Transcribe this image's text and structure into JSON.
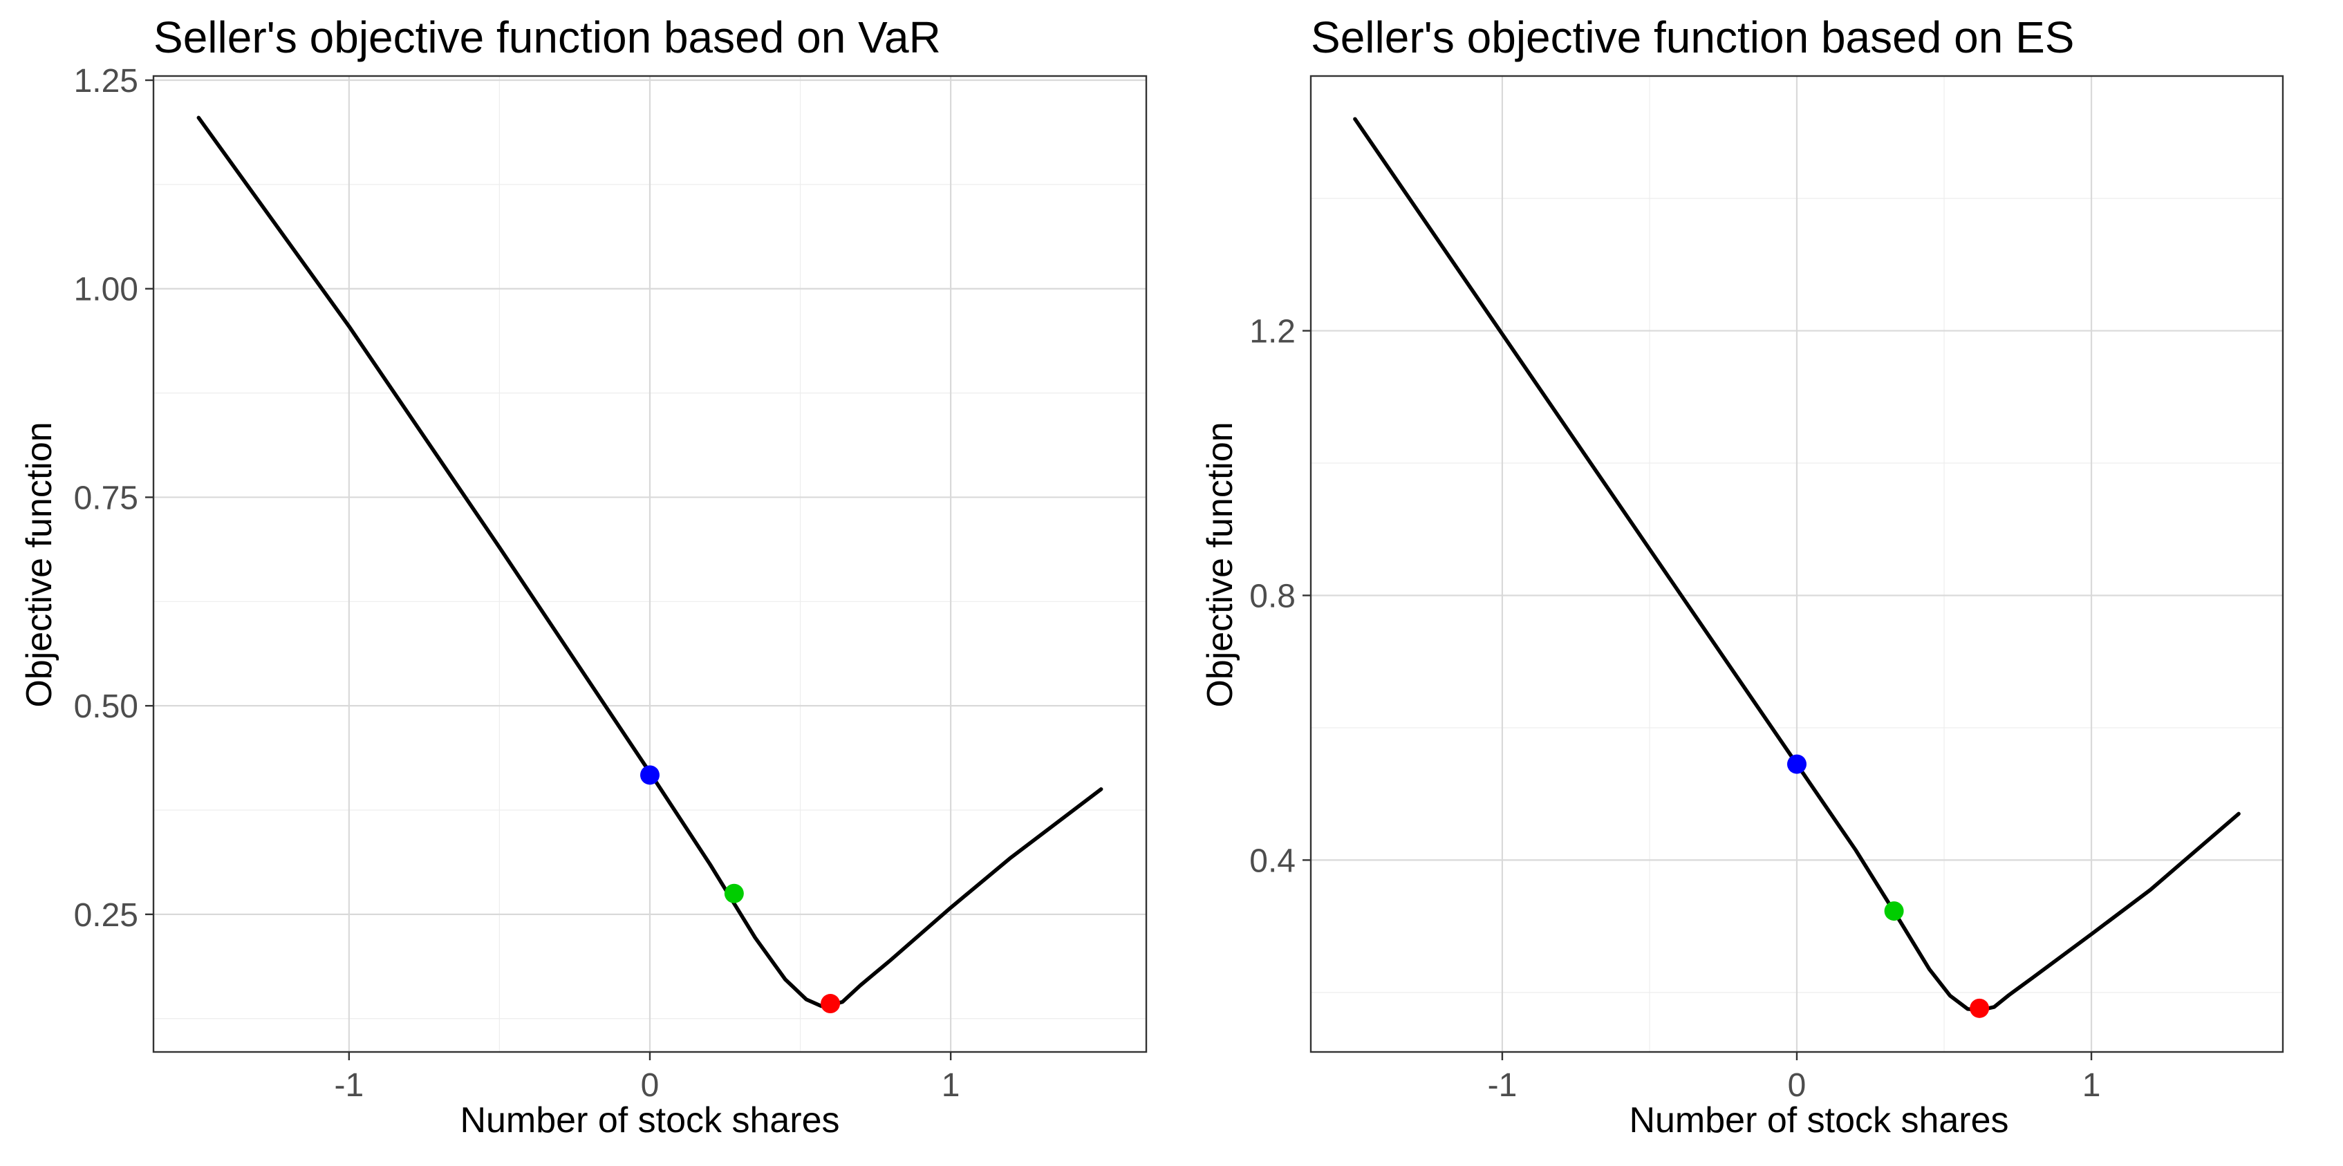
{
  "chart_data": [
    {
      "type": "line",
      "title": "Seller's objective function based on VaR",
      "xlabel": "Number of stock shares",
      "ylabel": "Objective function",
      "xlim": [
        -1.65,
        1.65
      ],
      "ylim": [
        0.085,
        1.255
      ],
      "x_ticks": [
        -1,
        0,
        1
      ],
      "x_tick_labels": [
        "-1",
        "0",
        "1"
      ],
      "y_ticks": [
        0.25,
        0.5,
        0.75,
        1.0,
        1.25
      ],
      "y_tick_labels": [
        "0.25",
        "0.50",
        "0.75",
        "1.00",
        "1.25"
      ],
      "grid": true,
      "series": [
        {
          "color": "#000000",
          "x": [
            -1.5,
            -1.0,
            -0.5,
            0.0,
            0.2,
            0.35,
            0.45,
            0.52,
            0.57,
            0.6,
            0.64,
            0.7,
            0.8,
            1.0,
            1.2,
            1.5
          ],
          "y": [
            1.205,
            0.955,
            0.69,
            0.42,
            0.31,
            0.222,
            0.172,
            0.148,
            0.14,
            0.141,
            0.145,
            0.165,
            0.195,
            0.258,
            0.318,
            0.4
          ]
        }
      ],
      "points": [
        {
          "x": 0.0,
          "y": 0.417,
          "color": "#0000ff"
        },
        {
          "x": 0.28,
          "y": 0.275,
          "color": "#00cd00"
        },
        {
          "x": 0.6,
          "y": 0.143,
          "color": "#ff0000"
        }
      ]
    },
    {
      "type": "line",
      "title": "Seller's objective function based on ES",
      "xlabel": "Number of stock shares",
      "ylabel": "Objective function",
      "xlim": [
        -1.65,
        1.65
      ],
      "ylim": [
        0.11,
        1.585
      ],
      "x_ticks": [
        -1,
        0,
        1
      ],
      "x_tick_labels": [
        "-1",
        "0",
        "1"
      ],
      "y_ticks": [
        0.4,
        0.8,
        1.2
      ],
      "y_tick_labels": [
        "0.4",
        "0.8",
        "1.2"
      ],
      "grid": true,
      "series": [
        {
          "color": "#000000",
          "x": [
            -1.5,
            -1.0,
            -0.5,
            0.0,
            0.2,
            0.35,
            0.45,
            0.52,
            0.58,
            0.62,
            0.67,
            0.72,
            0.8,
            1.0,
            1.2,
            1.5
          ],
          "y": [
            1.52,
            1.195,
            0.87,
            0.545,
            0.415,
            0.308,
            0.235,
            0.195,
            0.175,
            0.173,
            0.178,
            0.196,
            0.222,
            0.288,
            0.355,
            0.47
          ]
        }
      ],
      "points": [
        {
          "x": 0.0,
          "y": 0.545,
          "color": "#0000ff"
        },
        {
          "x": 0.33,
          "y": 0.323,
          "color": "#00cd00"
        },
        {
          "x": 0.62,
          "y": 0.176,
          "color": "#ff0000"
        }
      ]
    }
  ]
}
